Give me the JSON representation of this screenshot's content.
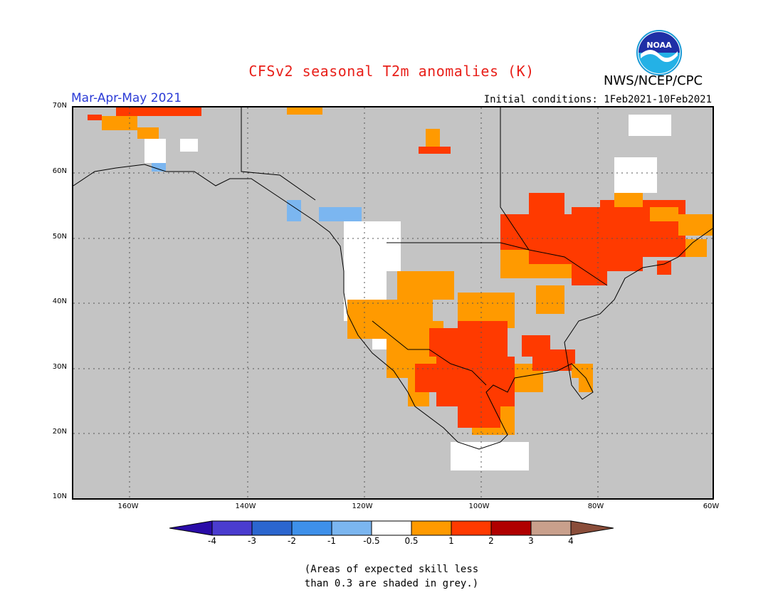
{
  "header": {
    "title": "CFSv2 seasonal T2m anomalies (K)",
    "season": "Mar-Apr-May 2021",
    "initial_conditions": "Initial conditions: 1Feb2021-10Feb2021",
    "organization": "NWS/NCEP/CPC",
    "logo_text": "NOAA"
  },
  "axes": {
    "lat_labels": [
      "70N",
      "60N",
      "50N",
      "40N",
      "30N",
      "20N",
      "10N"
    ],
    "lon_labels": [
      "160W",
      "140W",
      "120W",
      "100W",
      "80W",
      "60W"
    ]
  },
  "legend": {
    "ticks": [
      "-4",
      "-3",
      "-2",
      "-1",
      "-0.5",
      "0.5",
      "1",
      "2",
      "3",
      "4"
    ],
    "colors": [
      "#2a0ca8",
      "#4a3ccf",
      "#2b66cf",
      "#3e90ea",
      "#7bb6f0",
      "#ffffff",
      "#ff9a00",
      "#ff3a00",
      "#b00000",
      "#c9a08c",
      "#8a4d3a"
    ],
    "grey": "#c4c4c4"
  },
  "note": {
    "line1": "(Areas of expected skill less",
    "line2": "than 0.3 are shaded in grey.)"
  }
}
